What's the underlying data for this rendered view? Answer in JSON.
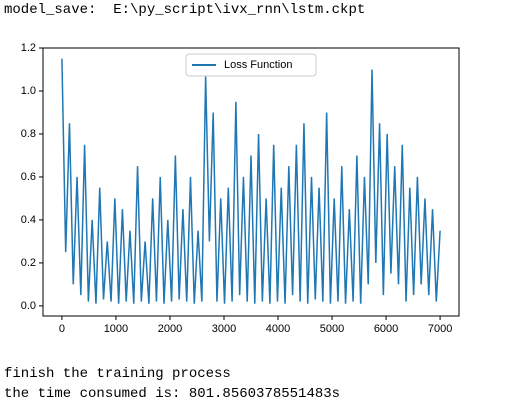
{
  "console_top": "model_save:  E:\\py_script\\ivx_rnn\\lstm.ckpt",
  "console_bottom": [
    "finish the training process",
    "the time consumed is: 801.8560378551483s"
  ],
  "chart_data": {
    "type": "line",
    "x": [
      0,
      70,
      140,
      210,
      280,
      350,
      420,
      490,
      560,
      630,
      700,
      770,
      840,
      910,
      980,
      1050,
      1120,
      1190,
      1260,
      1330,
      1400,
      1470,
      1540,
      1610,
      1680,
      1750,
      1820,
      1890,
      1960,
      2030,
      2100,
      2170,
      2240,
      2310,
      2380,
      2450,
      2520,
      2590,
      2660,
      2730,
      2800,
      2870,
      2940,
      3010,
      3080,
      3150,
      3220,
      3290,
      3360,
      3430,
      3500,
      3570,
      3640,
      3710,
      3780,
      3850,
      3920,
      3990,
      4060,
      4130,
      4200,
      4270,
      4340,
      4410,
      4480,
      4550,
      4620,
      4690,
      4760,
      4830,
      4900,
      4970,
      5040,
      5110,
      5180,
      5250,
      5320,
      5390,
      5460,
      5530,
      5600,
      5670,
      5740,
      5810,
      5880,
      5950,
      6020,
      6090,
      6160,
      6230,
      6300,
      6370,
      6440,
      6510,
      6580,
      6650,
      6720,
      6790,
      6860,
      6930,
      7000
    ],
    "series": [
      {
        "name": "Loss Function",
        "color": "#1f77b4",
        "values": [
          1.15,
          0.25,
          0.85,
          0.1,
          0.6,
          0.05,
          0.75,
          0.02,
          0.4,
          0.01,
          0.55,
          0.03,
          0.3,
          0.02,
          0.5,
          0.01,
          0.45,
          0.02,
          0.35,
          0.01,
          0.65,
          0.02,
          0.3,
          0.01,
          0.5,
          0.02,
          0.6,
          0.01,
          0.4,
          0.02,
          0.7,
          0.03,
          0.45,
          0.02,
          0.6,
          0.01,
          0.35,
          0.02,
          1.07,
          0.3,
          0.9,
          0.02,
          0.5,
          0.01,
          0.55,
          0.02,
          0.95,
          0.05,
          0.6,
          0.02,
          0.7,
          0.01,
          0.8,
          0.02,
          0.5,
          0.01,
          0.75,
          0.02,
          0.55,
          0.01,
          0.65,
          0.05,
          0.75,
          0.02,
          0.85,
          0.01,
          0.6,
          0.03,
          0.55,
          0.02,
          0.9,
          0.01,
          0.5,
          0.02,
          0.65,
          0.01,
          0.45,
          0.02,
          0.7,
          0.01,
          0.6,
          0.1,
          1.1,
          0.2,
          0.85,
          0.05,
          0.8,
          0.15,
          0.65,
          0.1,
          0.75,
          0.02,
          0.55,
          0.05,
          0.6,
          0.1,
          0.5,
          0.05,
          0.45,
          0.02,
          0.35
        ]
      }
    ],
    "xlim": [
      -350,
      7350
    ],
    "ylim": [
      -0.047,
      1.2
    ],
    "xticks": [
      0,
      1000,
      2000,
      3000,
      4000,
      5000,
      6000,
      7000
    ],
    "yticks": [
      {
        "value": 0,
        "label": "0.0"
      },
      0.2,
      0.4,
      0.6,
      0.8,
      {
        "value": 1,
        "label": "1.0"
      },
      1.2
    ],
    "legend": "upper center"
  }
}
